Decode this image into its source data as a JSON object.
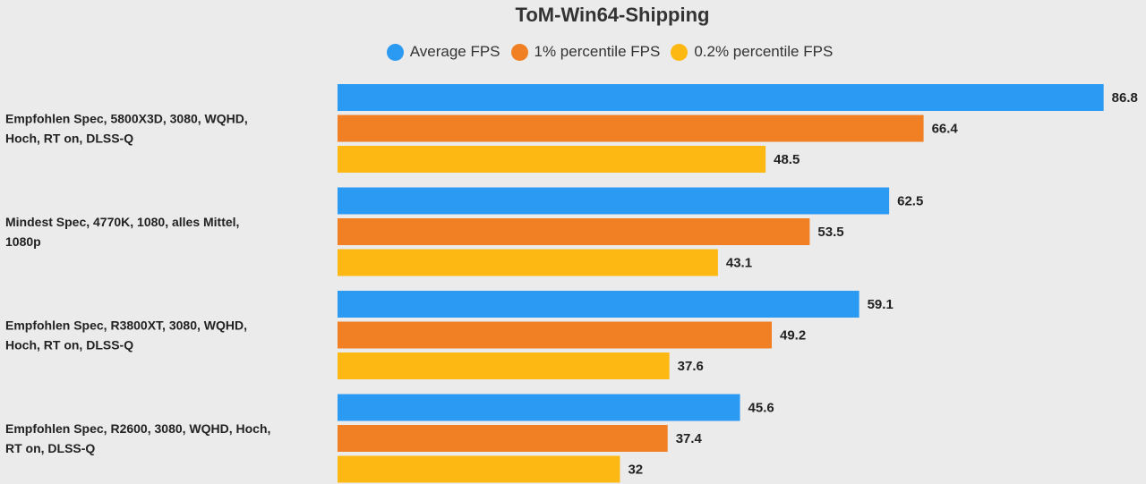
{
  "colors": {
    "series": [
      "#2b9af3",
      "#f08023",
      "#fdb813"
    ],
    "background": "#ebebeb"
  },
  "chart_data": {
    "type": "bar",
    "orientation": "horizontal",
    "title": "ToM-Win64-Shipping",
    "legend_position": "top",
    "grid": false,
    "xlim": [
      0,
      90
    ],
    "categories": [
      [
        "Empfohlen Spec, 5800X3D, 3080, WQHD,",
        "Hoch, RT on, DLSS-Q"
      ],
      [
        "Mindest Spec, 4770K, 1080, alles Mittel,",
        "1080p"
      ],
      [
        "Empfohlen Spec, R3800XT, 3080, WQHD,",
        "Hoch, RT on, DLSS-Q"
      ],
      [
        "Empfohlen Spec, R2600, 3080, WQHD, Hoch,",
        "RT on, DLSS-Q"
      ]
    ],
    "series": [
      {
        "name": "Average FPS",
        "values": [
          86.8,
          62.5,
          59.1,
          45.6
        ]
      },
      {
        "name": "1% percentile FPS",
        "values": [
          66.4,
          53.5,
          49.2,
          37.4
        ]
      },
      {
        "name": "0.2% percentile FPS",
        "values": [
          48.5,
          43.1,
          37.6,
          32
        ]
      }
    ]
  }
}
